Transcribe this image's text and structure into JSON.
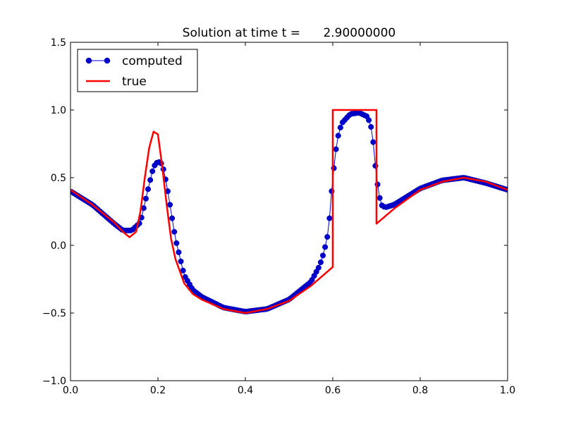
{
  "chart_data": {
    "type": "line",
    "title": "Solution at time t =      2.90000000",
    "xlabel": "",
    "ylabel": "",
    "xlim": [
      0.0,
      1.0
    ],
    "ylim": [
      -1.0,
      1.5
    ],
    "x_ticks": [
      "0.0",
      "0.2",
      "0.4",
      "0.6",
      "0.8",
      "1.0"
    ],
    "y_ticks": [
      "−1.0",
      "−0.5",
      "0.0",
      "0.5",
      "1.0",
      "1.5"
    ],
    "grid": false,
    "legend": {
      "placement": "top-left",
      "entries": [
        "computed",
        "true"
      ]
    },
    "series": [
      {
        "name": "computed",
        "style": "line-with-circle-markers",
        "color": "#0000cc",
        "x": [
          0.0,
          0.05,
          0.1,
          0.12,
          0.14,
          0.16,
          0.18,
          0.19,
          0.2,
          0.21,
          0.22,
          0.24,
          0.26,
          0.28,
          0.3,
          0.35,
          0.4,
          0.45,
          0.5,
          0.55,
          0.57,
          0.58,
          0.59,
          0.6,
          0.61,
          0.62,
          0.64,
          0.66,
          0.68,
          0.69,
          0.7,
          0.71,
          0.72,
          0.74,
          0.8,
          0.85,
          0.9,
          0.95,
          1.0
        ],
        "y": [
          0.4,
          0.3,
          0.16,
          0.11,
          0.11,
          0.17,
          0.45,
          0.58,
          0.62,
          0.6,
          0.45,
          0.05,
          -0.22,
          -0.33,
          -0.38,
          -0.46,
          -0.49,
          -0.47,
          -0.4,
          -0.27,
          -0.15,
          -0.05,
          0.1,
          0.5,
          0.78,
          0.9,
          0.97,
          0.98,
          0.95,
          0.85,
          0.5,
          0.3,
          0.28,
          0.3,
          0.42,
          0.48,
          0.5,
          0.46,
          0.41
        ]
      },
      {
        "name": "true",
        "style": "line",
        "color": "#ff0000",
        "x": [
          0.0,
          0.05,
          0.1,
          0.12,
          0.135,
          0.15,
          0.16,
          0.17,
          0.18,
          0.19,
          0.2,
          0.21,
          0.22,
          0.23,
          0.24,
          0.26,
          0.28,
          0.3,
          0.35,
          0.4,
          0.45,
          0.5,
          0.55,
          0.6,
          0.6,
          0.7,
          0.7,
          0.74,
          0.8,
          0.85,
          0.9,
          0.95,
          1.0
        ],
        "y": [
          0.41,
          0.3,
          0.17,
          0.1,
          0.06,
          0.1,
          0.25,
          0.5,
          0.72,
          0.84,
          0.82,
          0.58,
          0.3,
          0.05,
          -0.1,
          -0.28,
          -0.36,
          -0.4,
          -0.47,
          -0.5,
          -0.47,
          -0.41,
          -0.3,
          -0.16,
          1.0,
          1.0,
          0.16,
          0.27,
          0.41,
          0.47,
          0.5,
          0.47,
          0.41
        ]
      }
    ]
  }
}
